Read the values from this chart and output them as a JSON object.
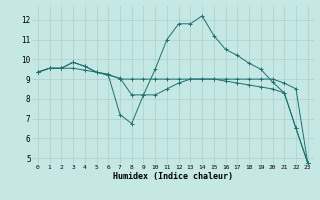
{
  "xlabel": "Humidex (Indice chaleur)",
  "background_color": "#c5e8e5",
  "grid_color": "#aacfcc",
  "line_color": "#1e7070",
  "xlim": [
    -0.5,
    23.5
  ],
  "ylim": [
    4.7,
    12.7
  ],
  "yticks": [
    5,
    6,
    7,
    8,
    9,
    10,
    11,
    12
  ],
  "xticks": [
    0,
    1,
    2,
    3,
    4,
    5,
    6,
    7,
    8,
    9,
    10,
    11,
    12,
    13,
    14,
    15,
    16,
    17,
    18,
    19,
    20,
    21,
    22,
    23
  ],
  "series": [
    {
      "x": [
        0,
        1,
        2,
        3,
        4,
        5,
        6,
        7,
        8,
        9,
        10,
        11,
        12,
        13,
        14,
        15,
        16,
        17,
        18,
        19,
        20,
        21,
        22,
        23
      ],
      "y": [
        9.35,
        9.55,
        9.55,
        9.55,
        9.45,
        9.35,
        9.25,
        9.0,
        9.0,
        9.0,
        9.0,
        9.0,
        9.0,
        9.0,
        9.0,
        9.0,
        9.0,
        9.0,
        9.0,
        9.0,
        9.0,
        8.8,
        8.5,
        4.75
      ]
    },
    {
      "x": [
        0,
        1,
        2,
        3,
        4,
        5,
        6,
        7,
        8,
        9,
        10,
        11,
        12,
        13,
        14,
        15,
        16,
        17,
        18,
        19,
        20,
        21,
        22,
        23
      ],
      "y": [
        9.35,
        9.55,
        9.55,
        9.85,
        9.65,
        9.35,
        9.2,
        9.05,
        8.2,
        8.2,
        9.5,
        11.0,
        11.8,
        11.8,
        12.2,
        11.2,
        10.5,
        10.2,
        9.8,
        9.5,
        8.85,
        8.3,
        6.5,
        4.75
      ]
    },
    {
      "x": [
        0,
        1,
        2,
        3,
        4,
        5,
        6,
        7,
        8,
        9,
        10,
        11,
        12,
        13,
        14,
        15,
        16,
        17,
        18,
        19,
        20,
        21,
        22,
        23
      ],
      "y": [
        9.35,
        9.55,
        9.55,
        9.85,
        9.65,
        9.35,
        9.2,
        7.2,
        6.75,
        8.2,
        8.2,
        8.5,
        8.8,
        9.0,
        9.0,
        9.0,
        8.9,
        8.8,
        8.7,
        8.6,
        8.5,
        8.3,
        6.5,
        4.75
      ]
    }
  ]
}
